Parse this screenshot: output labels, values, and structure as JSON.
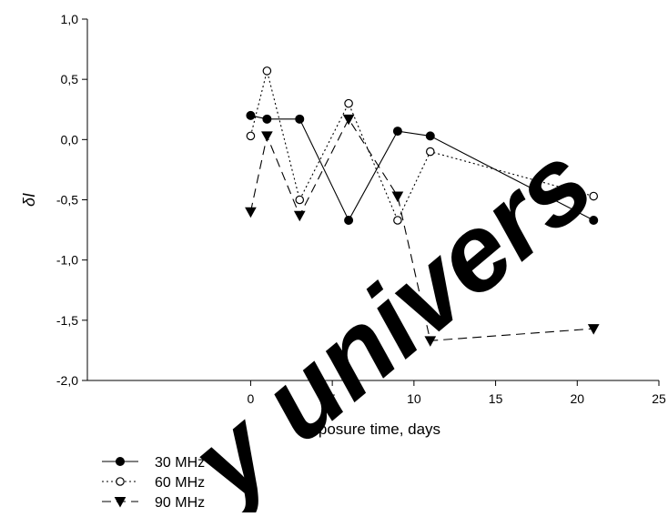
{
  "chart_data": {
    "type": "line",
    "title": "",
    "xlabel": "exposure time, days",
    "ylabel": "δI",
    "xlim": [
      -10,
      25
    ],
    "ylim": [
      -2.0,
      1.0
    ],
    "x_ticks": [
      0,
      5,
      10,
      15,
      20,
      25
    ],
    "x_tick_labels": [
      "0",
      "5",
      "10",
      "15",
      "20",
      "25"
    ],
    "y_ticks": [
      1.0,
      0.5,
      0.0,
      -0.5,
      -1.0,
      -1.5,
      -2.0
    ],
    "y_tick_labels": [
      "1,0",
      "0,5",
      "0,0",
      "-0,5",
      "-1,0",
      "-1,5",
      "-2,0"
    ],
    "grid": false,
    "legend_position": "bottom-left",
    "series": [
      {
        "name": "30 MHz",
        "marker": "filled-circle",
        "line_style": "solid",
        "x": [
          0,
          1,
          3,
          6,
          9,
          11,
          21
        ],
        "y": [
          0.2,
          0.17,
          0.17,
          -0.67,
          0.07,
          0.03,
          -0.67
        ]
      },
      {
        "name": "60 MHz",
        "marker": "open-circle",
        "line_style": "dotted",
        "x": [
          0,
          1,
          3,
          6,
          9,
          11,
          21
        ],
        "y": [
          0.03,
          0.57,
          -0.5,
          0.3,
          -0.67,
          -0.1,
          -0.47
        ]
      },
      {
        "name": "90 MHz",
        "marker": "filled-triangle-down",
        "line_style": "dashed",
        "x": [
          0,
          1,
          3,
          6,
          9,
          11,
          21
        ],
        "y": [
          -0.6,
          0.03,
          -0.63,
          0.17,
          -0.47,
          -1.67,
          -1.57
        ]
      }
    ],
    "colors": {
      "line": "#000000",
      "background": "#ffffff",
      "watermark": "#000000"
    }
  },
  "watermark": {
    "text": "y univers"
  }
}
